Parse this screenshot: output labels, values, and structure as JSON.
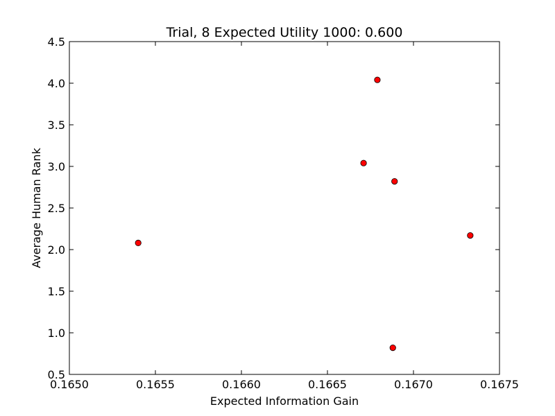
{
  "chart_data": {
    "type": "scatter",
    "title": "Trial, 8 Expected Utility 1000: 0.600",
    "xlabel": "Expected Information Gain",
    "ylabel": "Average Human Rank",
    "xlim": [
      0.165,
      0.1675
    ],
    "ylim": [
      0.5,
      4.5
    ],
    "x_ticks": [
      "0.1650",
      "0.1655",
      "0.1660",
      "0.1665",
      "0.1670",
      "0.1675"
    ],
    "y_ticks": [
      "0.5",
      "1.0",
      "1.5",
      "2.0",
      "2.5",
      "3.0",
      "3.5",
      "4.0",
      "4.5"
    ],
    "grid": false,
    "marker_color": "#ff0000",
    "points": [
      {
        "x": 0.1654,
        "y": 2.08
      },
      {
        "x": 0.16671,
        "y": 3.04
      },
      {
        "x": 0.16679,
        "y": 4.04
      },
      {
        "x": 0.16689,
        "y": 2.82
      },
      {
        "x": 0.16688,
        "y": 0.82
      },
      {
        "x": 0.16733,
        "y": 2.17
      }
    ]
  }
}
